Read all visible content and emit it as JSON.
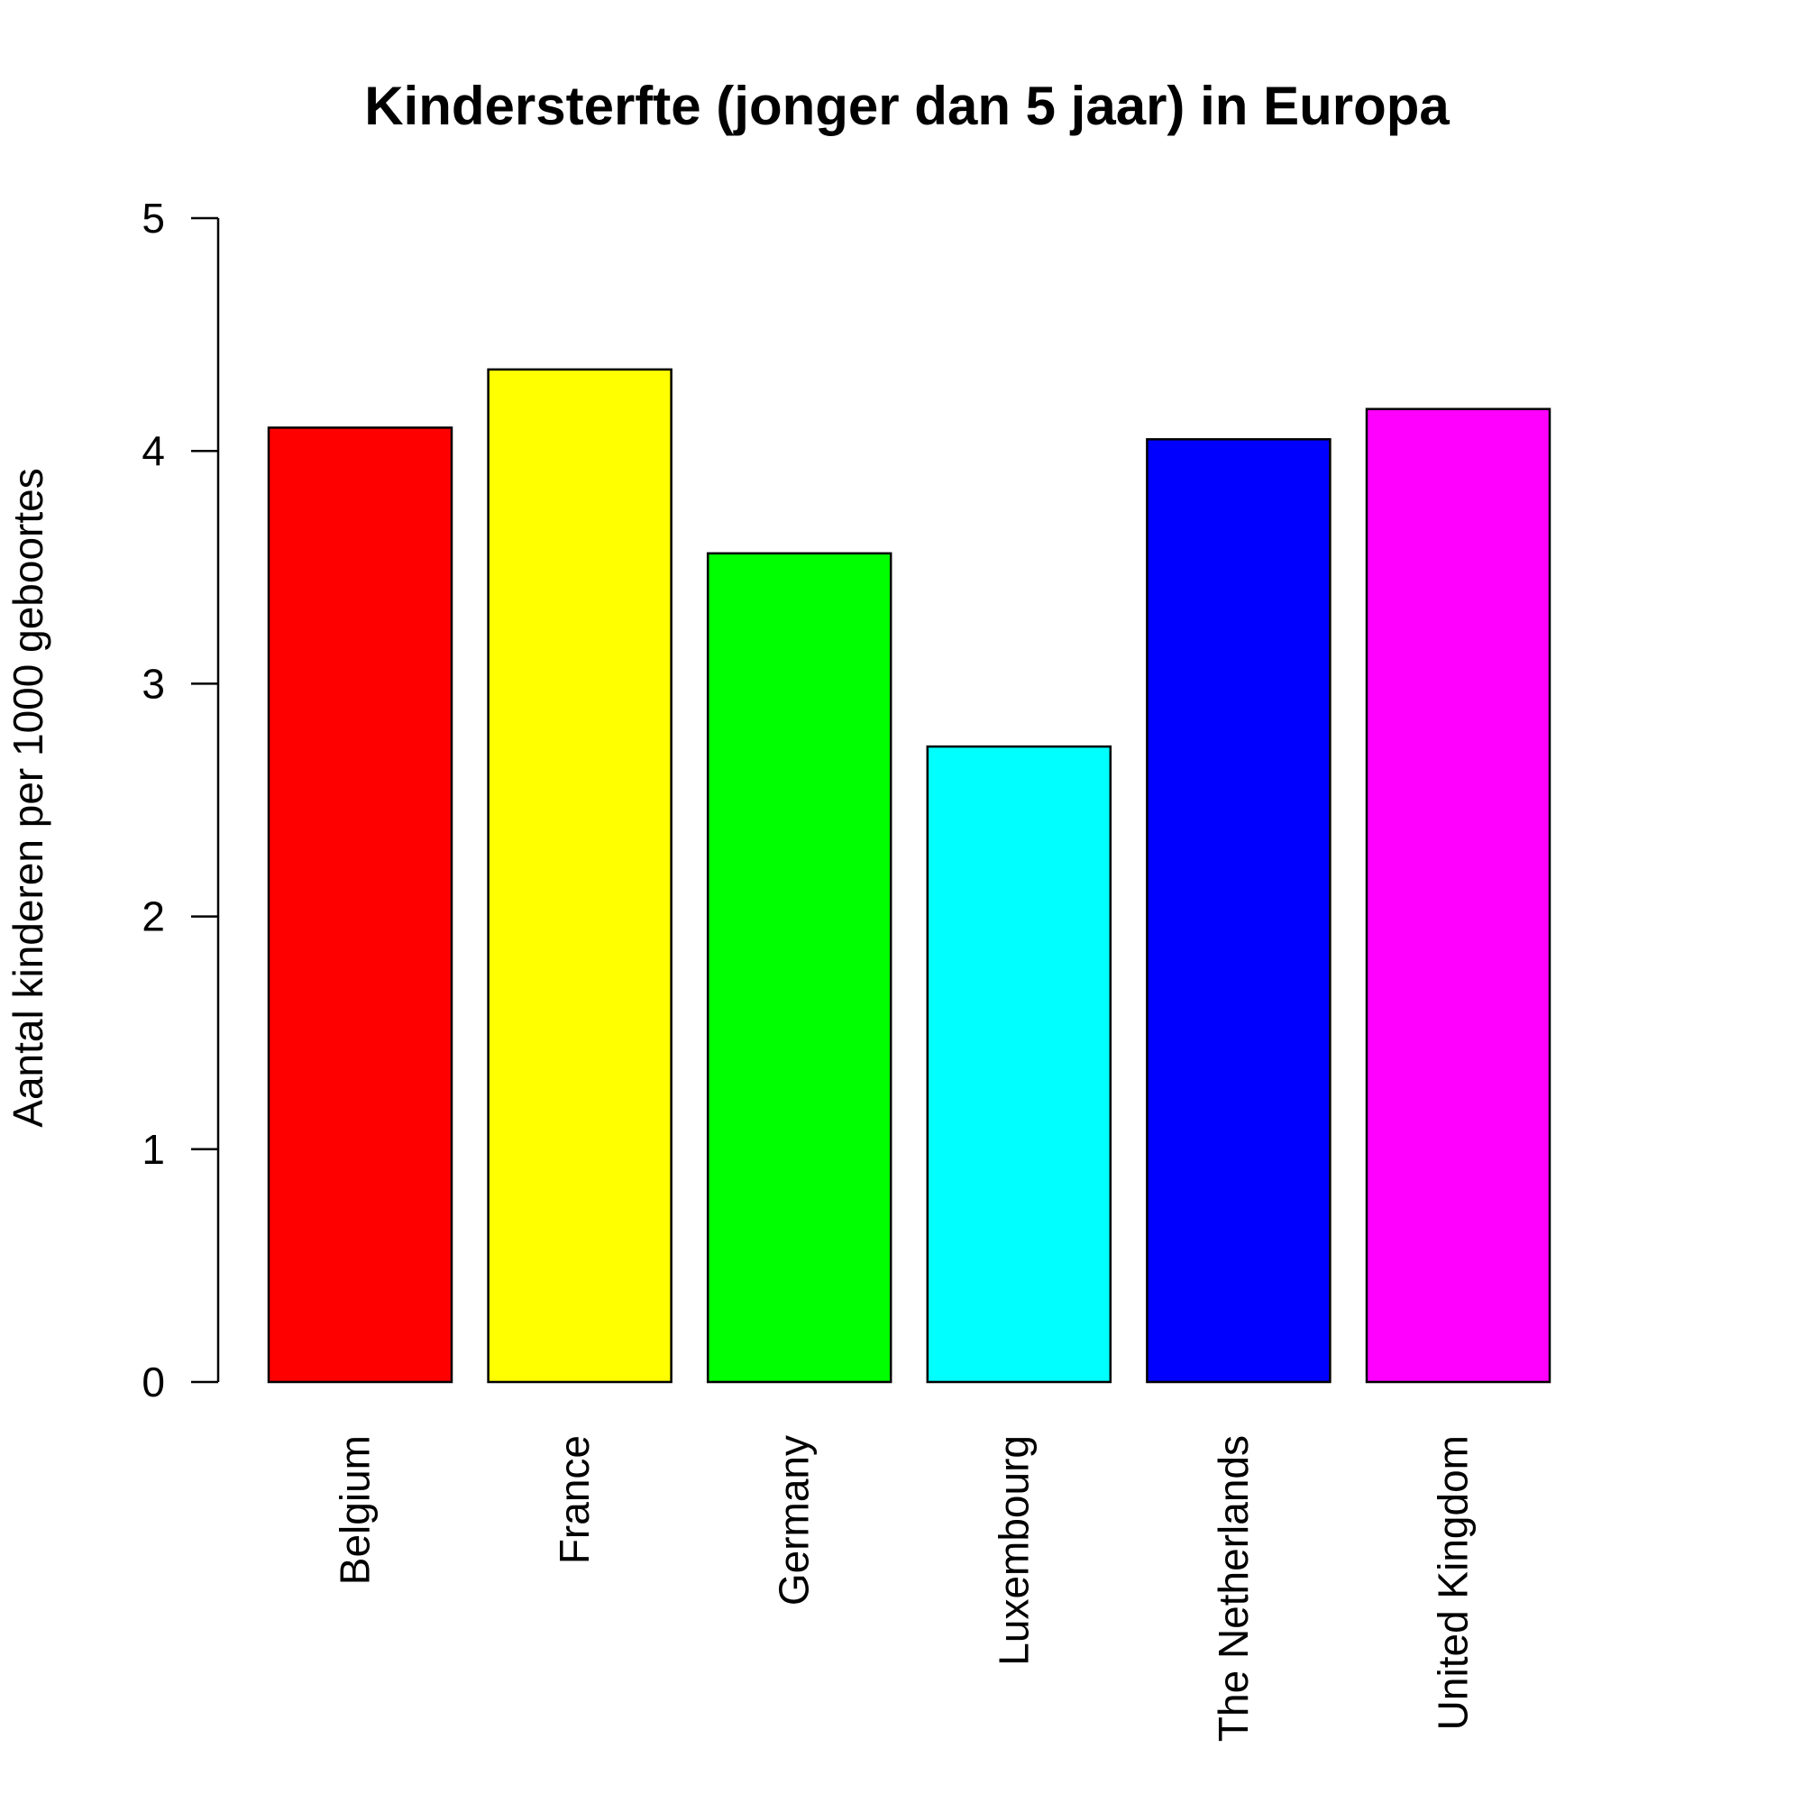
{
  "chart_data": {
    "type": "bar",
    "title": "Kindersterfte (jonger dan 5 jaar) in Europa",
    "xlabel": "",
    "ylabel": "Aantal kinderen per 1000 geboortes",
    "categories": [
      "Belgium",
      "France",
      "Germany",
      "Luxembourg",
      "The Netherlands",
      "United Kingdom"
    ],
    "values": [
      4.1,
      4.35,
      3.56,
      2.73,
      4.05,
      4.18
    ],
    "colors": [
      "#FF0000",
      "#FFFF00",
      "#00FF00",
      "#00FFFF",
      "#0000FF",
      "#FF00FF"
    ],
    "ylim": [
      0,
      5
    ],
    "yticks": [
      "0",
      "1",
      "2",
      "3",
      "4",
      "5"
    ],
    "grid": false,
    "legend": "none"
  }
}
